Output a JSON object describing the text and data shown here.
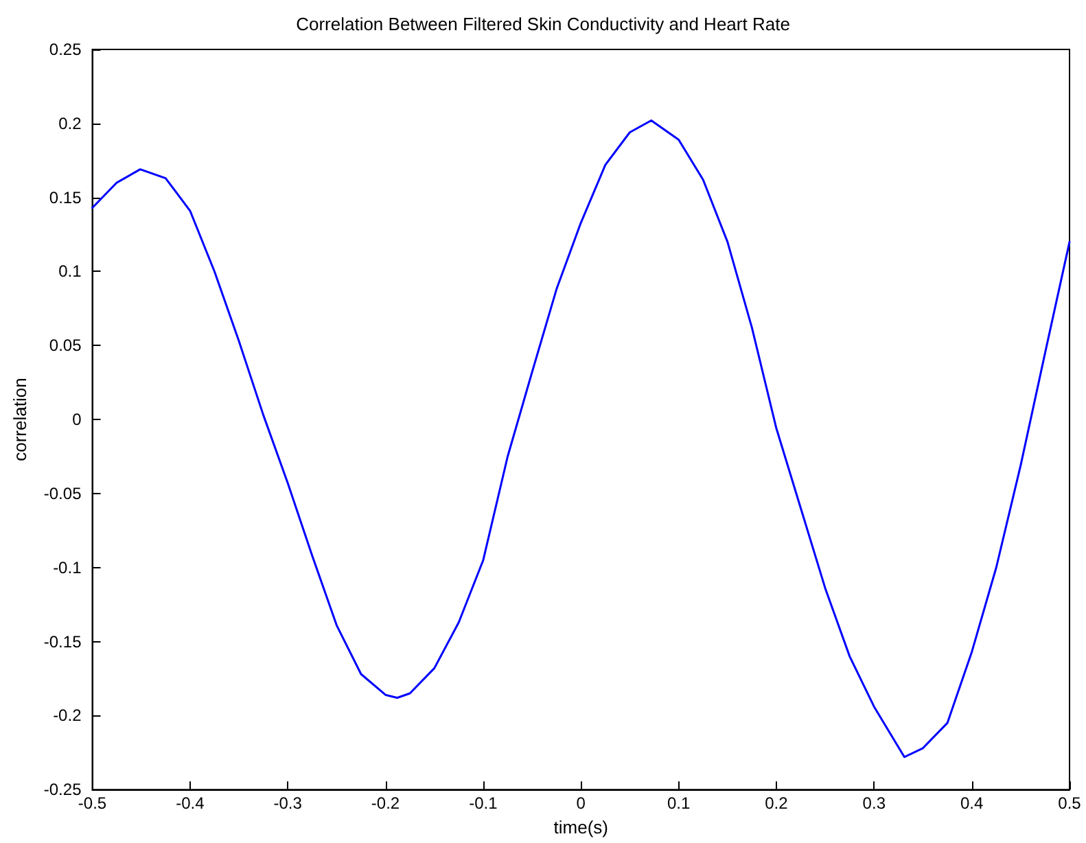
{
  "chart_data": {
    "type": "line",
    "title": "Correlation Between Filtered Skin Conductivity and Heart Rate",
    "xlabel": "time(s)",
    "ylabel": "correlation",
    "x": [
      -0.5,
      -0.475,
      -0.451,
      -0.425,
      -0.4,
      -0.375,
      -0.35,
      -0.325,
      -0.3,
      -0.275,
      -0.25,
      -0.225,
      -0.2,
      -0.188,
      -0.175,
      -0.15,
      -0.125,
      -0.1,
      -0.075,
      -0.05,
      -0.025,
      0,
      0.025,
      0.05,
      0.072,
      0.1,
      0.125,
      0.15,
      0.175,
      0.2,
      0.225,
      0.25,
      0.275,
      0.3,
      0.331,
      0.35,
      0.375,
      0.4,
      0.425,
      0.45,
      0.475,
      0.5
    ],
    "series": [
      {
        "color": "#0000ff",
        "values": [
          0.143,
          0.16,
          0.169,
          0.163,
          0.141,
          0.1,
          0.053,
          0.003,
          -0.043,
          -0.092,
          -0.139,
          -0.172,
          -0.186,
          -0.188,
          -0.185,
          -0.168,
          -0.137,
          -0.095,
          -0.025,
          0.032,
          0.088,
          0.133,
          0.172,
          0.194,
          0.202,
          0.189,
          0.162,
          0.12,
          0.062,
          -0.006,
          -0.06,
          -0.114,
          -0.16,
          -0.194,
          -0.228,
          -0.222,
          -0.205,
          -0.157,
          -0.1,
          -0.031,
          0.045,
          0.12
        ]
      }
    ],
    "xlim": [
      -0.5,
      0.5
    ],
    "xticks": [
      -0.5,
      -0.4,
      -0.3,
      -0.2,
      -0.1,
      0,
      0.1,
      0.2,
      0.3,
      0.4,
      0.5
    ],
    "ylim": [
      -0.25,
      0.25
    ],
    "yticks": [
      -0.25,
      -0.2,
      -0.15,
      -0.1,
      -0.05,
      0,
      0.05,
      0.1,
      0.15,
      0.2,
      0.25
    ],
    "grid": false,
    "marker": "none",
    "line_style": "solid"
  }
}
